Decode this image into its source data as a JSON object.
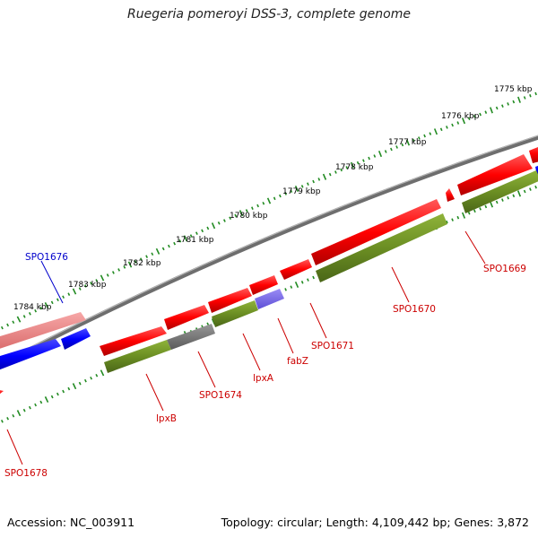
{
  "title": "Ruegeria pomeroyi DSS-3, complete genome",
  "footer": {
    "accession": "Accession: NC_003911",
    "summary": "Topology: circular; Length: 4,109,442 bp; Genes: 3,872"
  },
  "scale_labels": [
    "1775 kbp",
    "1776 kbp",
    "1777 kbp",
    "1778 kbp",
    "1779 kbp",
    "1780 kbp",
    "1781 kbp",
    "1782 kbp",
    "1783 kbp",
    "1784 kbp"
  ],
  "gene_labels": [
    "SPO1676",
    "SPO1669",
    "SPO1670",
    "SPO1671",
    "fabZ",
    "lpxA",
    "SPO1674",
    "lpxB",
    "SPO1678"
  ],
  "colors": {
    "gene_forward": "#ff0000",
    "gene_reverse": "#0000ff",
    "gene_forward_light": "#f08080",
    "cds_track": "#6b8e23",
    "cds_gray": "#808080",
    "cds_purple": "#7b68ee",
    "backbone": "#808080",
    "tick_green": "#228b22",
    "label_red": "#cc0000",
    "label_blue": "#0000cc"
  }
}
